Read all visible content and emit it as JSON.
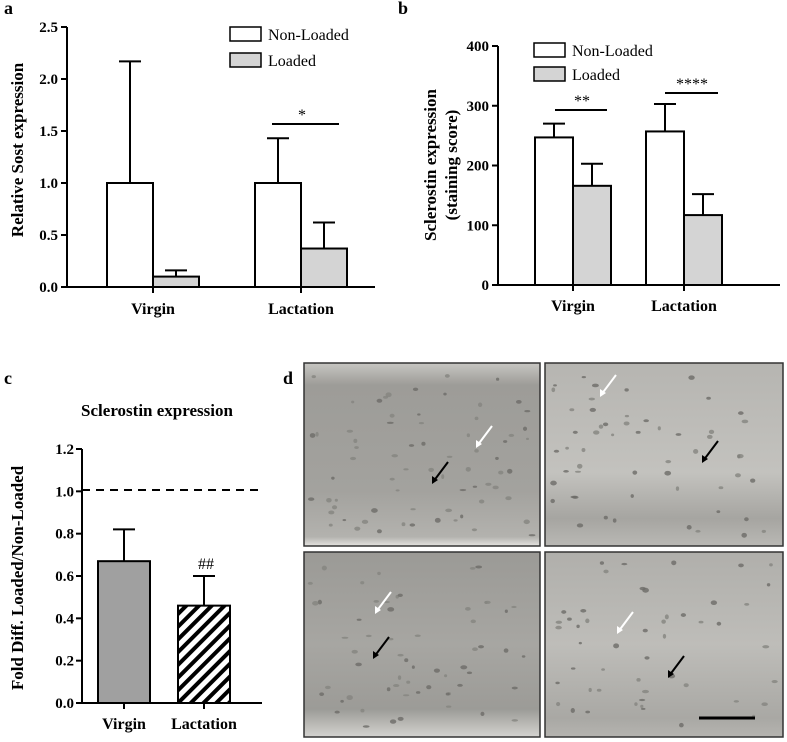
{
  "panels": {
    "a": "a",
    "b": "b",
    "c": "c",
    "d": "d"
  },
  "colors": {
    "non_loaded_fill": "#ffffff",
    "loaded_fill": "#d4d4d4",
    "virgin_fold_fill": "#a0a0a0",
    "hatch": "#000000",
    "micrograph_bg": "#a9a8a4"
  },
  "chart_data": [
    {
      "type": "bar",
      "panel": "a",
      "ylabel": "Relative Sost expression",
      "categories": [
        "Virgin",
        "Lactation"
      ],
      "ylim": [
        0,
        2.5
      ],
      "yticks": [
        "0.0",
        "0.5",
        "1.0",
        "1.5",
        "2.0",
        "2.5"
      ],
      "series": [
        {
          "name": "Non-Loaded",
          "values": [
            1.0,
            1.0
          ],
          "errors": [
            1.17,
            0.43
          ]
        },
        {
          "name": "Loaded",
          "values": [
            0.1,
            0.37
          ],
          "errors": [
            0.06,
            0.25
          ]
        }
      ],
      "legend": "top-right",
      "annotations": [
        {
          "text": "*",
          "category": "Lactation"
        }
      ]
    },
    {
      "type": "bar",
      "panel": "b",
      "ylabel": "Sclerostin expression",
      "ylabel2": "(staining score)",
      "categories": [
        "Virgin",
        "Lactation"
      ],
      "ylim": [
        0,
        400
      ],
      "yticks": [
        "0",
        "100",
        "200",
        "300",
        "400"
      ],
      "series": [
        {
          "name": "Non-Loaded",
          "values": [
            247,
            257
          ],
          "errors": [
            23,
            46
          ]
        },
        {
          "name": "Loaded",
          "values": [
            166,
            117
          ],
          "errors": [
            37,
            35
          ]
        }
      ],
      "legend": "top-left",
      "annotations": [
        {
          "text": "**",
          "category": "Virgin"
        },
        {
          "text": "****",
          "category": "Lactation"
        }
      ]
    },
    {
      "type": "bar",
      "panel": "c",
      "title": "Sclerostin expression",
      "ylabel": "Fold Diff. Loaded/Non-Loaded",
      "categories": [
        "Virgin",
        "Lactation"
      ],
      "ylim": [
        0,
        1.2
      ],
      "yticks": [
        "0.0",
        "0.2",
        "0.4",
        "0.6",
        "0.8",
        "1.0",
        "1.2"
      ],
      "values": [
        0.67,
        0.46
      ],
      "errors": [
        0.15,
        0.14
      ],
      "reference_line": 1.0,
      "annotations": [
        {
          "text": "##",
          "category": "Lactation"
        }
      ]
    }
  ]
}
